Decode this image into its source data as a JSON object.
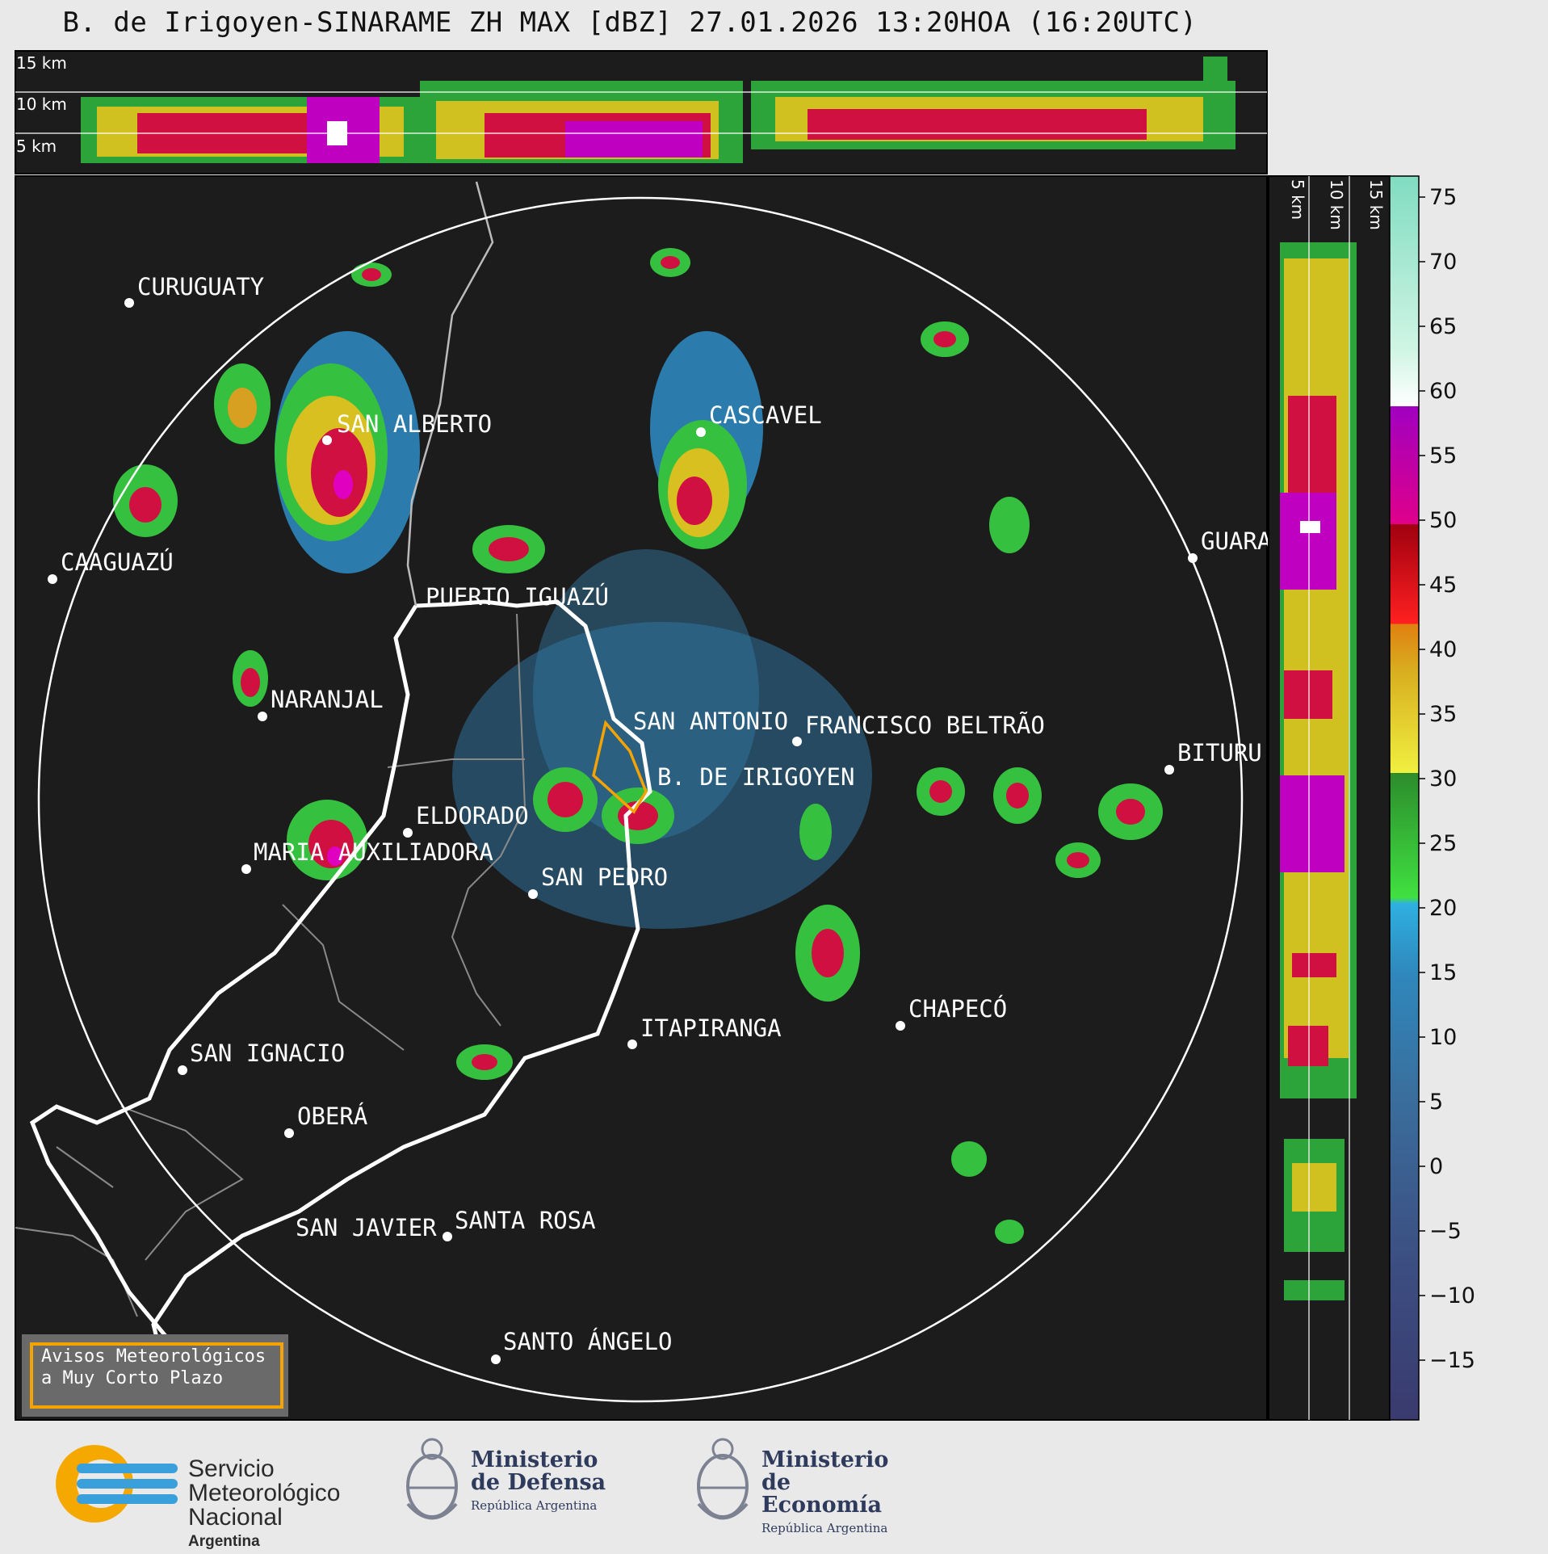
{
  "title": "B. de Irigoyen-SINARAME ZH MAX [dBZ] 27.01.2026 13:20HOA (16:20UTC)",
  "height_labels": {
    "top": [
      "15 km",
      "10 km",
      "5 km"
    ],
    "side": [
      "5 km",
      "10 km",
      "15 km"
    ]
  },
  "colorbar": {
    "ticks": [
      "75",
      "70",
      "65",
      "60",
      "55",
      "50",
      "45",
      "40",
      "35",
      "30",
      "25",
      "20",
      "15",
      "10",
      "5",
      "0",
      "−5",
      "−10",
      "−15"
    ]
  },
  "cities": [
    {
      "name": "CURUGUATY"
    },
    {
      "name": "SAN ALBERTO"
    },
    {
      "name": "CASCAVEL"
    },
    {
      "name": "CAAGUAZÚ"
    },
    {
      "name": "GUARA"
    },
    {
      "name": "PUERTO IGUAZÚ"
    },
    {
      "name": "NARANJAL"
    },
    {
      "name": "SAN ANTONIO"
    },
    {
      "name": "FRANCISCO BELTRÃO"
    },
    {
      "name": "BITURU"
    },
    {
      "name": "B. DE IRIGOYEN"
    },
    {
      "name": "ELDORADO"
    },
    {
      "name": "MARIA AUXILIADORA"
    },
    {
      "name": "SAN PEDRO"
    },
    {
      "name": "CHAPECÓ"
    },
    {
      "name": "ITAPIRANGA"
    },
    {
      "name": "SAN IGNACIO"
    },
    {
      "name": "OBERÁ"
    },
    {
      "name": "SAN JAVIER"
    },
    {
      "name": "SANTA ROSA"
    },
    {
      "name": "SANTO ÁNGELO"
    }
  ],
  "warning": {
    "line1": "Avisos Meteorológicos",
    "line2": "a Muy Corto Plazo"
  },
  "footer": {
    "smn": {
      "line1": "Servicio",
      "line2": "Meteorológico",
      "line3": "Nacional",
      "line4": "Argentina"
    },
    "defensa": {
      "line1": "Ministerio",
      "line2": "de Defensa",
      "line3": "República Argentina"
    },
    "economia": {
      "line1": "Ministerio",
      "line2": "de Economía",
      "line3": "República Argentina"
    }
  },
  "colors": {
    "background": "#1c1c1c",
    "range_ring": "#ffffff",
    "border": "#ffffff",
    "warning_polygon": "#f5a300"
  }
}
